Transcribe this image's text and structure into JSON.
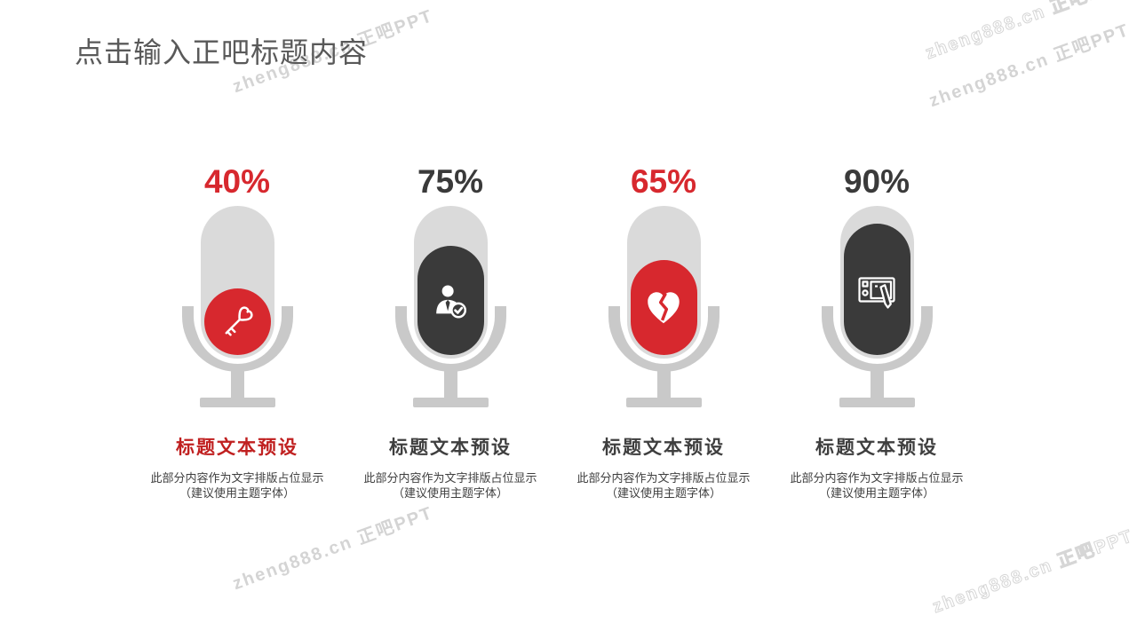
{
  "slide": {
    "title": "点击输入正吧标题内容",
    "title_color": "#595959",
    "watermark": "zheng888.cn 正吧PPT",
    "background": "#ffffff"
  },
  "colors": {
    "capsule_gray": "#dadada",
    "stand_gray": "#c9c9c9",
    "accent_red": "#d7282e",
    "accent_dark": "#3a3a3a",
    "watermark_gray": "#d4d4d4"
  },
  "items": [
    {
      "percent_label": "40%",
      "value": 40,
      "percent_color": "#d7282e",
      "fill_color": "#d7282e",
      "icon": "heart-key-icon",
      "title": "标题文本预设",
      "title_color": "#c02020",
      "desc_line1": "此部分内容作为文字排版占位显示",
      "desc_line2": "（建议使用主题字体）"
    },
    {
      "percent_label": "75%",
      "value": 75,
      "percent_color": "#3a3a3a",
      "fill_color": "#3a3a3a",
      "icon": "person-check-icon",
      "title": "标题文本预设",
      "title_color": "#3f3f3f",
      "desc_line1": "此部分内容作为文字排版占位显示",
      "desc_line2": "（建议使用主题字体）"
    },
    {
      "percent_label": "65%",
      "value": 65,
      "percent_color": "#d7282e",
      "fill_color": "#d7282e",
      "icon": "broken-heart-icon",
      "title": "标题文本预设",
      "title_color": "#3f3f3f",
      "desc_line1": "此部分内容作为文字排版占位显示",
      "desc_line2": "（建议使用主题字体）"
    },
    {
      "percent_label": "90%",
      "value": 90,
      "percent_color": "#3a3a3a",
      "fill_color": "#3a3a3a",
      "icon": "tablet-pen-icon",
      "title": "标题文本预设",
      "title_color": "#3f3f3f",
      "desc_line1": "此部分内容作为文字排版占位显示",
      "desc_line2": "（建议使用主题字体）"
    }
  ]
}
